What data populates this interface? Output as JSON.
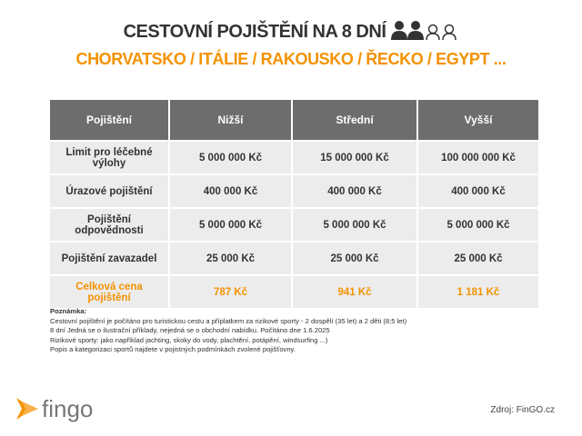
{
  "header": {
    "title": "CESTOVNÍ POJIŠTĚNÍ NA 8 DNÍ",
    "subtitle": "CHORVATSKO / ITÁLIE / RAKOUSKO / ŘECKO / EGYPT ..."
  },
  "table": {
    "columns": [
      "Pojištění",
      "Nižší",
      "Střední",
      "Vyšší"
    ],
    "rows": [
      [
        "Limit pro léčebné výlohy",
        "5 000 000 Kč",
        "15 000 000 Kč",
        "100 000 000 Kč"
      ],
      [
        "Úrazové pojištění",
        "400 000 Kč",
        "400 000 Kč",
        "400 000 Kč"
      ],
      [
        "Pojištění odpovědnosti",
        "5 000 000 Kč",
        "5 000 000 Kč",
        "5 000 000 Kč"
      ],
      [
        "Pojištění zavazadel",
        "25 000 Kč",
        "25 000 Kč",
        "25 000 Kč"
      ]
    ],
    "total": [
      "Celková cena pojištění",
      "787 Kč",
      "941 Kč",
      "1 181 Kč"
    ]
  },
  "note": {
    "heading": "Poznámka:",
    "lines": [
      "Cestovní pojištění je počítáno pro turistickou cestu a příplatkem za rizikové sporty - 2 dospělí (35 let) a 2 děti (8;5 let)",
      "8 dní Jedná se o ilustrační příklady, nejedná se o obchodní nabídku. Počítáno dne 1.6.2025",
      "Rizikové sporty: jako například jachting, skoky do vody, plachtění, potápění, windsurfing ...)",
      "Popis a kategorizaci sportů najdete v pojistných podmínkách zvolené pojišťovny."
    ]
  },
  "footer": {
    "logo": "fingo",
    "source": "Zdroj: FinGO.cz"
  }
}
